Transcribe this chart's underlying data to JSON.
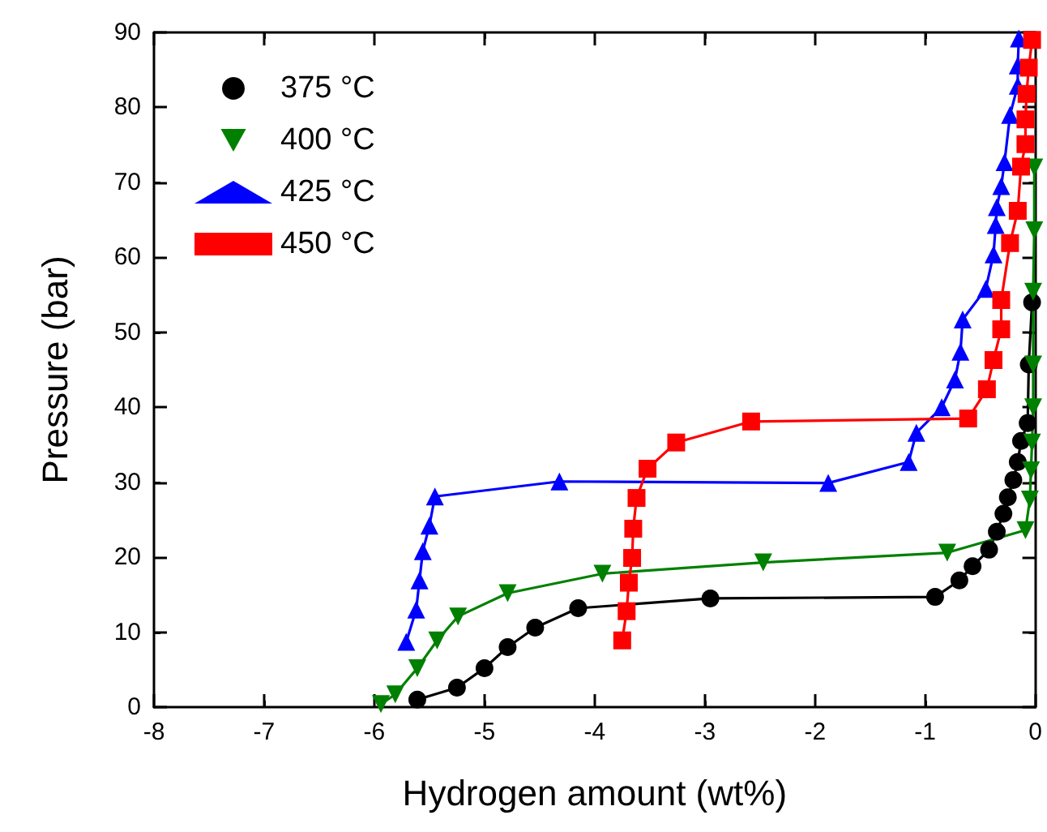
{
  "chart_data": {
    "type": "line",
    "xlabel": "Hydrogen amount (wt%)",
    "ylabel": "Pressure (bar)",
    "xlim": [
      -8,
      0
    ],
    "xticks": [
      -8,
      -7,
      -6,
      -5,
      -4,
      -3,
      -2,
      -1,
      0
    ],
    "ylim": [
      0,
      90
    ],
    "yticks": [
      0,
      10,
      20,
      30,
      40,
      50,
      60,
      70,
      80,
      90
    ],
    "grid": false,
    "legend": "top left",
    "line_style": "solid",
    "series": [
      {
        "name": "375 °C",
        "color": "#000000",
        "marker": "circle",
        "x": [
          -5.61,
          -5.25,
          -5.0,
          -4.79,
          -4.54,
          -4.15,
          -2.95,
          -0.91,
          -0.69,
          -0.57,
          -0.42,
          -0.35,
          -0.29,
          -0.25,
          -0.2,
          -0.16,
          -0.13,
          -0.07,
          -0.06,
          -0.03
        ],
        "values": [
          1,
          2.6,
          5.2,
          8,
          10.6,
          13.2,
          14.5,
          14.7,
          16.9,
          18.8,
          21,
          23.4,
          25.8,
          28,
          30.3,
          32.7,
          35.5,
          37.9,
          45.7,
          54
        ]
      },
      {
        "name": "400 °C",
        "color": "#008000",
        "marker": "triangle-down",
        "x": [
          -5.94,
          -5.81,
          -5.61,
          -5.43,
          -5.24,
          -4.79,
          -3.93,
          -2.47,
          -0.8,
          -0.09,
          -0.05,
          -0.04,
          -0.03,
          -0.02,
          -0.02,
          -0.02,
          -0.01,
          -0.01
        ],
        "values": [
          0.4,
          1.7,
          5.2,
          8.9,
          12.1,
          15.2,
          17.8,
          19.3,
          20.6,
          23.6,
          27.7,
          31.6,
          35.3,
          40,
          45.7,
          55.4,
          63.6,
          72
        ]
      },
      {
        "name": "425 °C",
        "color": "#0000ff",
        "marker": "triangle",
        "x": [
          -5.71,
          -5.62,
          -5.59,
          -5.56,
          -5.5,
          -5.45,
          -4.32,
          -1.88,
          -1.15,
          -1.08,
          -0.85,
          -0.73,
          -0.68,
          -0.66,
          -0.45,
          -0.38,
          -0.36,
          -0.35,
          -0.31,
          -0.28,
          -0.23,
          -0.16,
          -0.16,
          -0.15
        ],
        "values": [
          8.7,
          13,
          16.9,
          20.8,
          24.2,
          28.1,
          30.1,
          29.9,
          32.7,
          36.6,
          40,
          43.7,
          47.4,
          51.7,
          55.8,
          60.4,
          64.3,
          66.7,
          69.5,
          72.7,
          79,
          82.9,
          85.6,
          89.2
        ]
      },
      {
        "name": "450 °C",
        "color": "#ff0000",
        "marker": "square",
        "x": [
          -3.75,
          -3.71,
          -3.69,
          -3.66,
          -3.65,
          -3.62,
          -3.52,
          -3.26,
          -2.58,
          -0.61,
          -0.44,
          -0.38,
          -0.31,
          -0.31,
          -0.23,
          -0.16,
          -0.13,
          -0.09,
          -0.09,
          -0.08,
          -0.06,
          -0.03
        ],
        "values": [
          8.9,
          12.8,
          16.6,
          19.9,
          23.8,
          27.9,
          31.8,
          35.3,
          38.1,
          38.5,
          42.4,
          46.3,
          50.4,
          54.3,
          61.9,
          66.2,
          72.1,
          75.1,
          78.4,
          81.8,
          85.3,
          89
        ]
      }
    ]
  }
}
